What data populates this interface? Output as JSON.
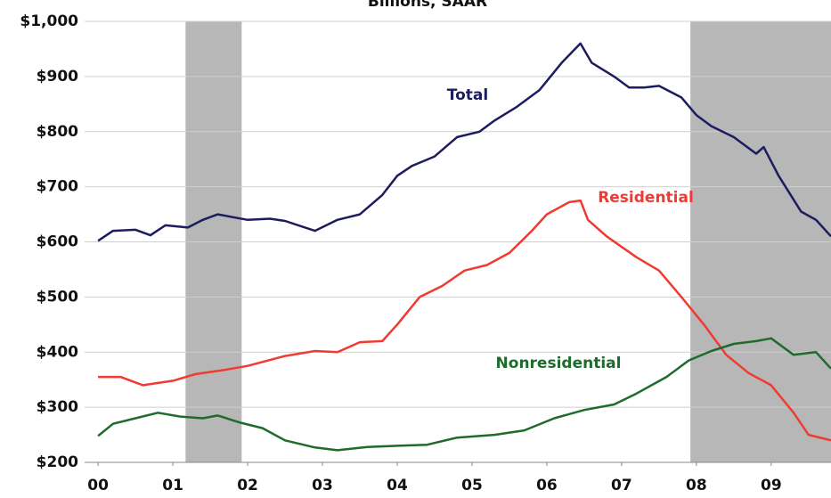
{
  "chart_data": {
    "type": "line",
    "subtitle": "Billions, SAAR",
    "xlim": [
      1999.82,
      2009.8
    ],
    "ylim": [
      200,
      1000
    ],
    "xticks": [
      {
        "value": 2000,
        "label": "00"
      },
      {
        "value": 2001,
        "label": "01"
      },
      {
        "value": 2002,
        "label": "02"
      },
      {
        "value": 2003,
        "label": "03"
      },
      {
        "value": 2004,
        "label": "04"
      },
      {
        "value": 2005,
        "label": "05"
      },
      {
        "value": 2006,
        "label": "06"
      },
      {
        "value": 2007,
        "label": "07"
      },
      {
        "value": 2008,
        "label": "08"
      },
      {
        "value": 2009,
        "label": "09"
      }
    ],
    "yticks": [
      {
        "value": 200,
        "label": "$200"
      },
      {
        "value": 300,
        "label": "$300"
      },
      {
        "value": 400,
        "label": "$400"
      },
      {
        "value": 500,
        "label": "$500"
      },
      {
        "value": 600,
        "label": "$600"
      },
      {
        "value": 700,
        "label": "$700"
      },
      {
        "value": 800,
        "label": "$800"
      },
      {
        "value": 900,
        "label": "$900"
      },
      {
        "value": 1000,
        "label": "$1,000"
      }
    ],
    "grid": true,
    "shade_color": "#b7b7b7",
    "recessions": [
      [
        2001.17,
        2001.92
      ],
      [
        2007.92,
        2009.8
      ]
    ],
    "series": [
      {
        "name": "Total",
        "color": "#1c1c5e",
        "x": [
          2000,
          2000.2,
          2000.5,
          2000.7,
          2000.9,
          2001.2,
          2001.4,
          2001.6,
          2002,
          2002.3,
          2002.5,
          2002.9,
          2003.2,
          2003.5,
          2003.8,
          2004.0,
          2004.2,
          2004.5,
          2004.8,
          2005.1,
          2005.3,
          2005.6,
          2005.9,
          2006.2,
          2006.45,
          2006.6,
          2006.9,
          2007.1,
          2007.3,
          2007.5,
          2007.8,
          2008.0,
          2008.2,
          2008.5,
          2008.8,
          2008.9,
          2009.1,
          2009.4,
          2009.6,
          2009.8
        ],
        "values": [
          602,
          620,
          622,
          612,
          630,
          626,
          640,
          650,
          640,
          642,
          638,
          620,
          640,
          650,
          685,
          720,
          738,
          755,
          790,
          800,
          820,
          845,
          875,
          925,
          960,
          925,
          900,
          880,
          880,
          883,
          862,
          830,
          810,
          790,
          760,
          772,
          720,
          655,
          640,
          610
        ]
      },
      {
        "name": "Residential",
        "color": "#f03a32",
        "x": [
          2000.0,
          2000.3,
          2000.6,
          2001,
          2001.3,
          2001.7,
          2002,
          2002.5,
          2002.9,
          2003.2,
          2003.5,
          2003.8,
          2004.0,
          2004.3,
          2004.6,
          2004.9,
          2005.2,
          2005.5,
          2005.8,
          2006.0,
          2006.3,
          2006.45,
          2006.55,
          2006.8,
          2007.2,
          2007.5,
          2007.8,
          2008.1,
          2008.4,
          2008.7,
          2009.0,
          2009.3,
          2009.5,
          2009.8
        ],
        "values": [
          355,
          355,
          340,
          348,
          360,
          368,
          375,
          393,
          402,
          400,
          418,
          420,
          450,
          500,
          520,
          548,
          558,
          580,
          620,
          650,
          672,
          675,
          640,
          610,
          572,
          548,
          500,
          450,
          395,
          362,
          340,
          290,
          250,
          240
        ]
      },
      {
        "name": "Nonresidential",
        "color": "#1e6b2b",
        "x": [
          2000,
          2000.2,
          2000.5,
          2000.8,
          2001.1,
          2001.4,
          2001.6,
          2001.9,
          2002.2,
          2002.5,
          2002.9,
          2003.2,
          2003.6,
          2004,
          2004.4,
          2004.8,
          2005.3,
          2005.7,
          2006.1,
          2006.5,
          2006.9,
          2007.2,
          2007.6,
          2007.9,
          2008.2,
          2008.5,
          2008.8,
          2009,
          2009.3,
          2009.6,
          2009.8
        ],
        "values": [
          248,
          270,
          280,
          290,
          283,
          280,
          285,
          272,
          262,
          240,
          227,
          222,
          228,
          230,
          232,
          245,
          250,
          258,
          280,
          295,
          305,
          325,
          355,
          385,
          402,
          415,
          420,
          425,
          395,
          400,
          370
        ]
      }
    ]
  }
}
